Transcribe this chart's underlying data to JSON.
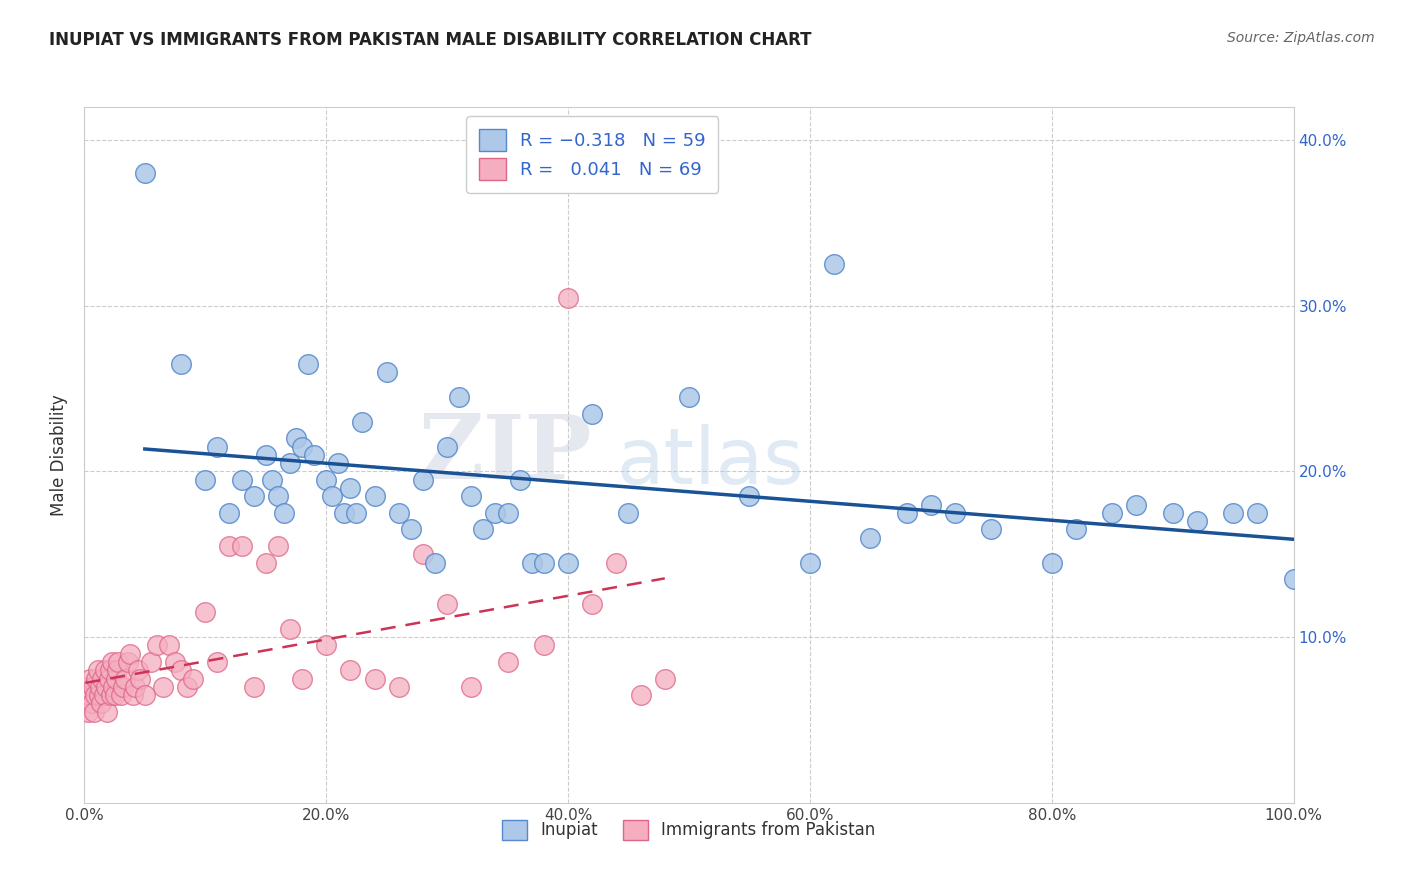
{
  "title": "INUPIAT VS IMMIGRANTS FROM PAKISTAN MALE DISABILITY CORRELATION CHART",
  "source": "Source: ZipAtlas.com",
  "ylabel": "Male Disability",
  "xlim": [
    0.0,
    1.0
  ],
  "ylim": [
    0.0,
    0.42
  ],
  "x_ticks": [
    0.0,
    0.2,
    0.4,
    0.6,
    0.8,
    1.0
  ],
  "x_tick_labels": [
    "0.0%",
    "20.0%",
    "40.0%",
    "60.0%",
    "80.0%",
    "100.0%"
  ],
  "y_ticks": [
    0.1,
    0.2,
    0.3,
    0.4
  ],
  "y_tick_labels": [
    "10.0%",
    "20.0%",
    "30.0%",
    "40.0%"
  ],
  "legend1_label": "Inupiat",
  "legend2_label": "Immigrants from Pakistan",
  "inupiat_color": "#adc8e8",
  "pakistan_color": "#f5aec0",
  "inupiat_edge": "#5588cc",
  "pakistan_edge": "#dd6688",
  "inupiat_R": -0.318,
  "inupiat_N": 59,
  "pakistan_R": 0.041,
  "pakistan_N": 69,
  "inupiat_line_color": "#1a5296",
  "pakistan_line_color": "#cc3355",
  "grid_color": "#cccccc",
  "background_color": "#ffffff",
  "inupiat_x": [
    0.05,
    0.08,
    0.1,
    0.11,
    0.12,
    0.13,
    0.14,
    0.15,
    0.155,
    0.16,
    0.165,
    0.17,
    0.175,
    0.18,
    0.185,
    0.19,
    0.2,
    0.205,
    0.21,
    0.215,
    0.22,
    0.225,
    0.23,
    0.24,
    0.25,
    0.26,
    0.27,
    0.28,
    0.29,
    0.3,
    0.31,
    0.32,
    0.33,
    0.34,
    0.35,
    0.36,
    0.37,
    0.38,
    0.4,
    0.42,
    0.45,
    0.5,
    0.55,
    0.6,
    0.62,
    0.65,
    0.68,
    0.7,
    0.72,
    0.75,
    0.8,
    0.82,
    0.85,
    0.87,
    0.9,
    0.92,
    0.95,
    0.97,
    1.0
  ],
  "inupiat_y": [
    0.38,
    0.265,
    0.195,
    0.215,
    0.175,
    0.195,
    0.185,
    0.21,
    0.195,
    0.185,
    0.175,
    0.205,
    0.22,
    0.215,
    0.265,
    0.21,
    0.195,
    0.185,
    0.205,
    0.175,
    0.19,
    0.175,
    0.23,
    0.185,
    0.26,
    0.175,
    0.165,
    0.195,
    0.145,
    0.215,
    0.245,
    0.185,
    0.165,
    0.175,
    0.175,
    0.195,
    0.145,
    0.145,
    0.145,
    0.235,
    0.175,
    0.245,
    0.185,
    0.145,
    0.325,
    0.16,
    0.175,
    0.18,
    0.175,
    0.165,
    0.145,
    0.165,
    0.175,
    0.18,
    0.175,
    0.17,
    0.175,
    0.175,
    0.135
  ],
  "pakistan_x": [
    0.001,
    0.002,
    0.003,
    0.004,
    0.005,
    0.006,
    0.007,
    0.008,
    0.009,
    0.01,
    0.011,
    0.012,
    0.013,
    0.014,
    0.015,
    0.016,
    0.017,
    0.018,
    0.019,
    0.02,
    0.021,
    0.022,
    0.023,
    0.024,
    0.025,
    0.026,
    0.027,
    0.028,
    0.03,
    0.032,
    0.034,
    0.036,
    0.038,
    0.04,
    0.042,
    0.044,
    0.046,
    0.05,
    0.055,
    0.06,
    0.065,
    0.07,
    0.075,
    0.08,
    0.085,
    0.09,
    0.1,
    0.11,
    0.12,
    0.13,
    0.14,
    0.15,
    0.16,
    0.17,
    0.18,
    0.2,
    0.22,
    0.24,
    0.26,
    0.28,
    0.3,
    0.32,
    0.35,
    0.38,
    0.4,
    0.42,
    0.44,
    0.46,
    0.48
  ],
  "pakistan_y": [
    0.065,
    0.07,
    0.055,
    0.065,
    0.075,
    0.06,
    0.07,
    0.055,
    0.065,
    0.075,
    0.08,
    0.065,
    0.07,
    0.06,
    0.075,
    0.065,
    0.08,
    0.07,
    0.055,
    0.075,
    0.08,
    0.065,
    0.085,
    0.07,
    0.065,
    0.075,
    0.08,
    0.085,
    0.065,
    0.07,
    0.075,
    0.085,
    0.09,
    0.065,
    0.07,
    0.08,
    0.075,
    0.065,
    0.085,
    0.095,
    0.07,
    0.095,
    0.085,
    0.08,
    0.07,
    0.075,
    0.115,
    0.085,
    0.155,
    0.155,
    0.07,
    0.145,
    0.155,
    0.105,
    0.075,
    0.095,
    0.08,
    0.075,
    0.07,
    0.15,
    0.12,
    0.07,
    0.085,
    0.095,
    0.305,
    0.12,
    0.145,
    0.065,
    0.075
  ]
}
